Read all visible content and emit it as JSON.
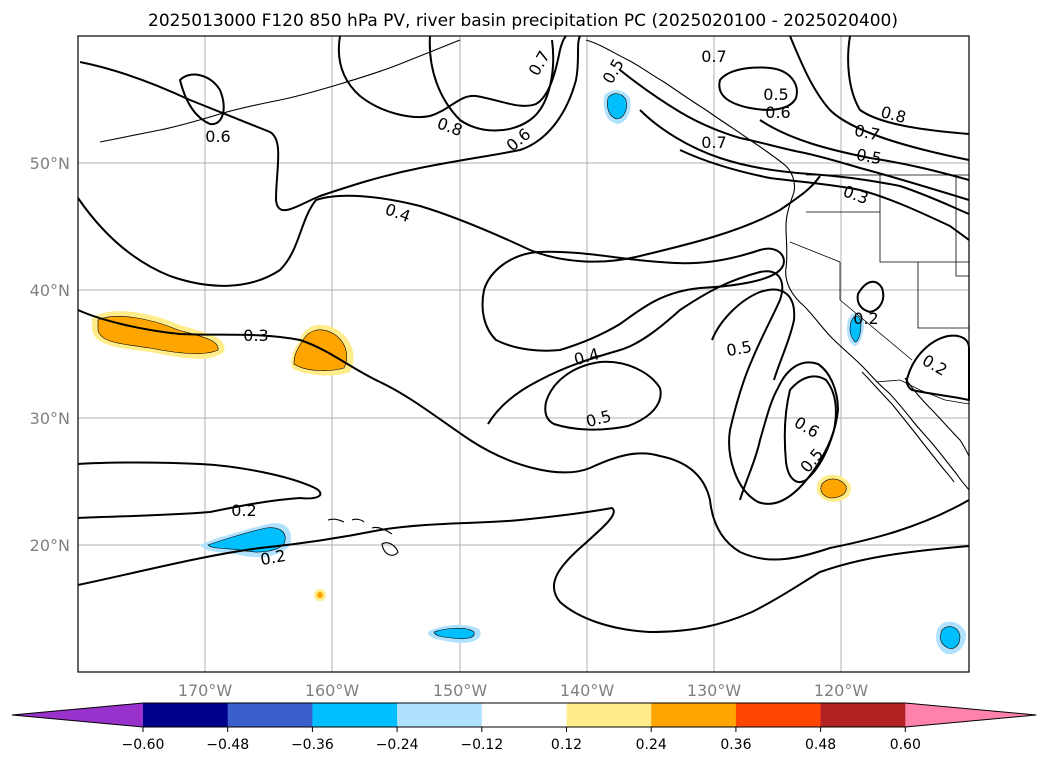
{
  "title": "2025013000 F120 850 hPa PV, river basin precipitation PC (2025020100 - 2025020400)",
  "lat_labels": [
    "50°N",
    "40°N",
    "30°N",
    "20°N"
  ],
  "lon_labels": [
    "170°W",
    "160°W",
    "150°W",
    "140°W",
    "130°W",
    "120°W"
  ],
  "contour_labels": [
    "0.6",
    "0.8",
    "0.7",
    "0.5",
    "0.6",
    "0.7",
    "0.5",
    "0.6",
    "0.8",
    "0.7",
    "0.7",
    "0.5",
    "0.3",
    "0.4",
    "0.3",
    "0.4",
    "0.5",
    "0.5",
    "0.2",
    "0.2",
    "0.6",
    "0.5",
    "0.2",
    "0.2"
  ],
  "colorbar": {
    "ticks": [
      "−0.60",
      "−0.48",
      "−0.36",
      "−0.24",
      "−0.12",
      "0.12",
      "0.24",
      "0.36",
      "0.48",
      "0.60"
    ],
    "colors": [
      "#9932cc",
      "#00008b",
      "#3a5fcd",
      "#00bfff",
      "#b0e2ff",
      "#ffffff",
      "#ffec8b",
      "#ffa500",
      "#ff4500",
      "#b22222",
      "#ff82ab"
    ]
  },
  "fill_colors": {
    "neg_mid": "#00bfff",
    "neg_light": "#b0e2ff",
    "pos_light": "#ffec8b",
    "pos_mid": "#ffa500"
  }
}
